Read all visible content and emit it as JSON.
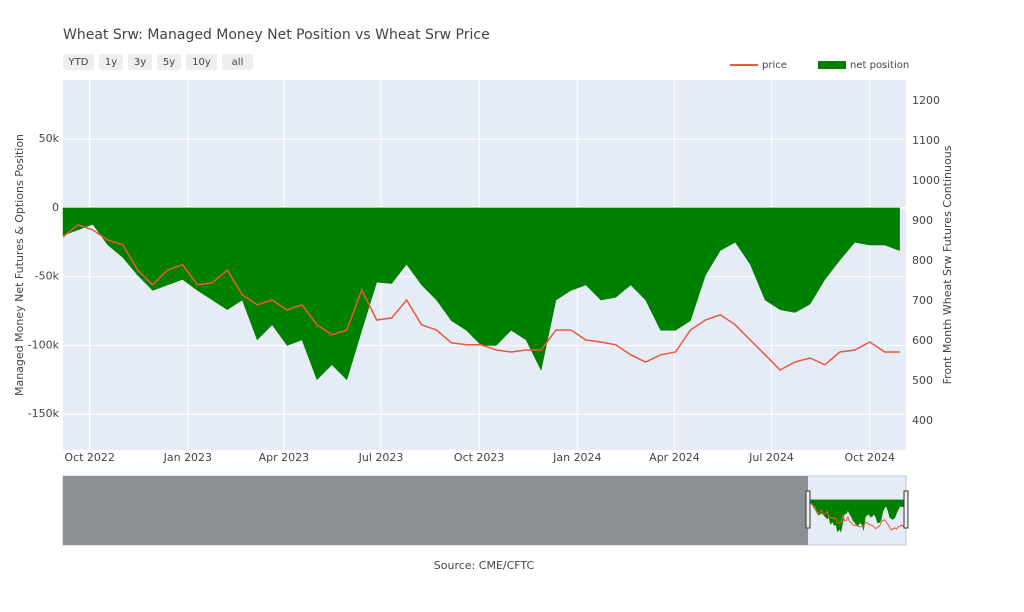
{
  "chart_data": {
    "type": "area-line",
    "title": "Wheat Srw: Managed Money Net Position vs Wheat Srw Price",
    "buttons": [
      "YTD",
      "1y",
      "3y",
      "5y",
      "10y",
      "all"
    ],
    "ylabel": "Managed Money Net Futures & Options Position",
    "y2label": "Front Month Wheat Srw Futures Continuous",
    "source": "Source: CME/CFTC",
    "legend": "top-right",
    "grid": true,
    "x": [
      "2022-09-06",
      "2022-09-20",
      "2022-10-04",
      "2022-10-18",
      "2022-11-01",
      "2022-11-15",
      "2022-11-29",
      "2022-12-13",
      "2022-12-27",
      "2023-01-10",
      "2023-01-24",
      "2023-02-07",
      "2023-02-21",
      "2023-03-07",
      "2023-03-21",
      "2023-04-04",
      "2023-04-18",
      "2023-05-02",
      "2023-05-16",
      "2023-05-30",
      "2023-06-13",
      "2023-06-27",
      "2023-07-11",
      "2023-07-25",
      "2023-08-08",
      "2023-08-22",
      "2023-09-05",
      "2023-09-19",
      "2023-10-03",
      "2023-10-17",
      "2023-10-31",
      "2023-11-14",
      "2023-11-28",
      "2023-12-12",
      "2023-12-26",
      "2024-01-09",
      "2024-01-23",
      "2024-02-06",
      "2024-02-20",
      "2024-03-05",
      "2024-03-19",
      "2024-04-02",
      "2024-04-16",
      "2024-04-30",
      "2024-05-14",
      "2024-05-28",
      "2024-06-11",
      "2024-06-25",
      "2024-07-09",
      "2024-07-23",
      "2024-08-06",
      "2024-08-20",
      "2024-09-03",
      "2024-09-17",
      "2024-10-01",
      "2024-10-15",
      "2024-10-29"
    ],
    "xlim": [
      "2022-09-06",
      "2024-11-04"
    ],
    "xticks": [
      {
        "value": "2022-10-01",
        "label": "Oct 2022"
      },
      {
        "value": "2023-01-01",
        "label": "Jan 2023"
      },
      {
        "value": "2023-04-01",
        "label": "Apr 2023"
      },
      {
        "value": "2023-07-01",
        "label": "Jul 2023"
      },
      {
        "value": "2023-10-01",
        "label": "Oct 2023"
      },
      {
        "value": "2024-01-01",
        "label": "Jan 2024"
      },
      {
        "value": "2024-04-01",
        "label": "Apr 2024"
      },
      {
        "value": "2024-07-01",
        "label": "Jul 2024"
      },
      {
        "value": "2024-10-01",
        "label": "Oct 2024"
      }
    ],
    "ylim": [
      -176000,
      93000
    ],
    "yticks": [
      {
        "value": -150000,
        "label": "-150k"
      },
      {
        "value": -100000,
        "label": "-100k"
      },
      {
        "value": -50000,
        "label": "-50k"
      },
      0,
      {
        "value": 50000,
        "label": "50k"
      }
    ],
    "y2lim": [
      327,
      1252
    ],
    "y2ticks": [
      400,
      500,
      600,
      700,
      800,
      900,
      1000,
      1100,
      1200
    ],
    "series": [
      {
        "name": "net position",
        "color": "#008000",
        "kind": "area",
        "axis": "y",
        "values": [
          -20000,
          -16000,
          -12000,
          -27000,
          -36000,
          -49000,
          -60000,
          -56000,
          -52000,
          -60000,
          -67000,
          -74000,
          -67000,
          -96000,
          -85000,
          -100000,
          -96000,
          -125000,
          -114000,
          -125000,
          -89000,
          -54000,
          -55000,
          -41000,
          -56000,
          -67000,
          -82000,
          -89000,
          -100000,
          -100000,
          -89000,
          -96000,
          -118000,
          -67000,
          -60000,
          -56000,
          -67000,
          -65000,
          -56000,
          -67000,
          -89000,
          -89000,
          -82000,
          -49000,
          -31000,
          -25000,
          -41000,
          -67000,
          -74000,
          -76000,
          -70000,
          -52000,
          -38000,
          -25000,
          -27000,
          -27000,
          -31000
        ]
      },
      {
        "name": "price",
        "color": "#e9573f",
        "kind": "line",
        "axis": "y2",
        "values": [
          860,
          890,
          877,
          852,
          840,
          777,
          740,
          777,
          790,
          740,
          745,
          777,
          715,
          690,
          702,
          677,
          690,
          640,
          615,
          627,
          727,
          652,
          657,
          702,
          640,
          627,
          595,
          590,
          590,
          577,
          572,
          577,
          577,
          627,
          627,
          602,
          597,
          590,
          565,
          547,
          565,
          572,
          627,
          652,
          665,
          640,
          602,
          565,
          527,
          547,
          557,
          540,
          572,
          577,
          597,
          572,
          572
        ]
      }
    ]
  }
}
